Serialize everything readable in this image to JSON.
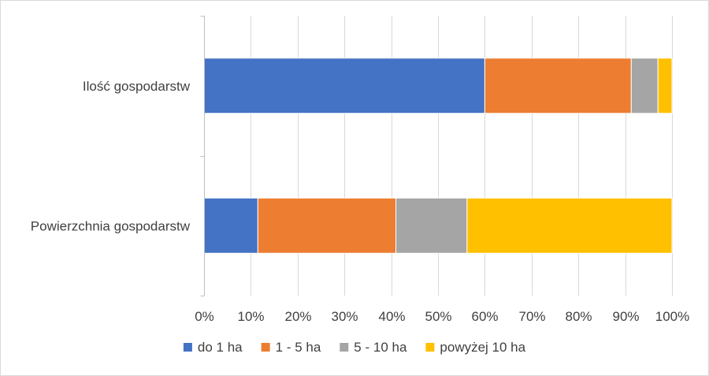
{
  "chart_data": {
    "type": "bar",
    "orientation": "horizontal",
    "stacked": "percent",
    "categories": [
      "Ilość gospodarstw",
      "Powierzchnia gospodarstw"
    ],
    "series": [
      {
        "name": "do 1 ha",
        "color": "#4472C4",
        "values": [
          60,
          11.5
        ]
      },
      {
        "name": "1 - 5 ha",
        "color": "#ED7D31",
        "values": [
          31.3,
          29.5
        ]
      },
      {
        "name": "5 - 10 ha",
        "color": "#A5A5A5",
        "values": [
          5.7,
          15.2
        ]
      },
      {
        "name": "powyżej 10 ha",
        "color": "#FFC000",
        "values": [
          3,
          43.8
        ]
      }
    ],
    "xlim": [
      0,
      100
    ],
    "xticks": [
      "0%",
      "10%",
      "20%",
      "30%",
      "40%",
      "50%",
      "60%",
      "70%",
      "80%",
      "90%",
      "100%"
    ],
    "grid": "vertical",
    "legend": "bottom",
    "title": "",
    "xlabel": "",
    "ylabel": ""
  }
}
